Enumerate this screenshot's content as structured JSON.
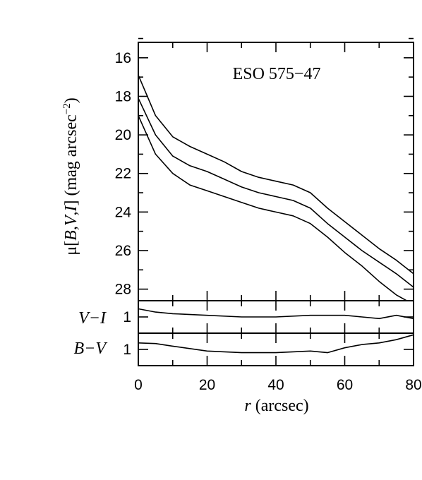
{
  "chart_data": [
    {
      "panel": "surface-brightness",
      "type": "line",
      "title": "ESO 575−47",
      "xlabel": "r (arcsec)",
      "ylabel_parts": [
        "μ[",
        "B",
        ",",
        "V",
        ",",
        "I",
        "] (mag arcsec",
        "−2",
        ")"
      ],
      "xlim": [
        0,
        80
      ],
      "ylim": [
        28.6,
        15.2
      ],
      "y_inverted": true,
      "yticks": [
        16,
        18,
        20,
        22,
        24,
        26,
        28
      ],
      "grid": false,
      "series": [
        {
          "x": [
            0,
            5,
            10,
            15,
            20,
            25,
            30,
            35,
            40,
            45,
            50,
            55,
            60,
            65,
            70,
            75,
            80
          ],
          "values": [
            16.9,
            19.0,
            20.1,
            20.6,
            21.0,
            21.4,
            21.9,
            22.2,
            22.4,
            22.6,
            23.0,
            23.8,
            24.5,
            25.2,
            25.9,
            26.5,
            27.2
          ]
        },
        {
          "x": [
            0,
            5,
            10,
            15,
            20,
            25,
            30,
            35,
            40,
            45,
            50,
            55,
            60,
            65,
            70,
            75,
            80
          ],
          "values": [
            18.1,
            20.0,
            21.1,
            21.6,
            21.9,
            22.3,
            22.7,
            23.0,
            23.2,
            23.4,
            23.8,
            24.6,
            25.3,
            26.0,
            26.6,
            27.2,
            27.9
          ]
        },
        {
          "x": [
            0,
            5,
            10,
            15,
            20,
            25,
            30,
            35,
            40,
            45,
            50,
            55,
            60,
            65,
            70,
            75,
            78
          ],
          "values": [
            19.0,
            21.0,
            22.0,
            22.6,
            22.9,
            23.2,
            23.5,
            23.8,
            24.0,
            24.2,
            24.6,
            25.3,
            26.1,
            26.8,
            27.6,
            28.3,
            28.7
          ]
        }
      ]
    },
    {
      "panel": "V-I",
      "type": "line",
      "ylabel": "V−I",
      "xlim": [
        0,
        80
      ],
      "ylim": [
        1.5,
        0.5
      ],
      "yticks": [
        1
      ],
      "series": [
        {
          "x": [
            0,
            5,
            10,
            20,
            30,
            40,
            50,
            60,
            65,
            70,
            75,
            80
          ],
          "values": [
            0.75,
            0.85,
            0.9,
            0.95,
            1.0,
            1.0,
            0.95,
            0.95,
            1.0,
            1.05,
            0.95,
            1.05
          ]
        }
      ]
    },
    {
      "panel": "B-V",
      "type": "line",
      "ylabel": "B−V",
      "xlim": [
        0,
        80
      ],
      "ylim": [
        1.5,
        0.5
      ],
      "yticks": [
        1
      ],
      "xticks": [
        0,
        20,
        40,
        60,
        80
      ],
      "series": [
        {
          "x": [
            0,
            5,
            10,
            20,
            30,
            40,
            50,
            55,
            60,
            65,
            70,
            75,
            80
          ],
          "values": [
            0.8,
            0.82,
            0.9,
            1.05,
            1.1,
            1.1,
            1.05,
            1.1,
            0.95,
            0.85,
            0.8,
            0.7,
            0.55
          ]
        }
      ]
    }
  ]
}
